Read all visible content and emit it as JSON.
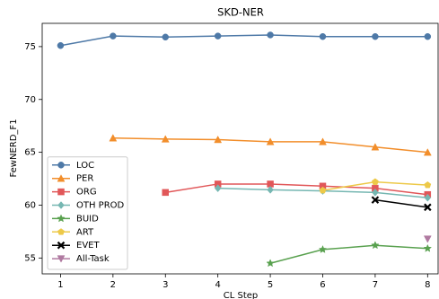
{
  "chart_data": {
    "type": "line",
    "title": "SKD-NER",
    "x_label": "CL Step",
    "y_label": "FewNERD_F1",
    "x": [
      1,
      2,
      3,
      4,
      5,
      6,
      7,
      8
    ],
    "xlim": [
      0.65,
      8.2
    ],
    "ylim": [
      53.5,
      77.2
    ],
    "xticks": [
      1,
      2,
      3,
      4,
      5,
      6,
      7,
      8
    ],
    "yticks": [
      55,
      60,
      65,
      70,
      75
    ],
    "grid": false,
    "legend": "lower left",
    "series": [
      {
        "name": "LOC",
        "color": "#4e79a7",
        "marker": "circle",
        "values": [
          75.1,
          76.0,
          75.9,
          76.0,
          76.1,
          75.95,
          75.95,
          75.95
        ]
      },
      {
        "name": "PER",
        "color": "#f28e2b",
        "marker": "triangle-up",
        "values": [
          null,
          66.35,
          66.25,
          66.2,
          66.0,
          66.0,
          65.5,
          65.0
        ]
      },
      {
        "name": "ORG",
        "color": "#e15759",
        "marker": "square",
        "values": [
          null,
          null,
          61.2,
          62.0,
          62.0,
          61.8,
          61.6,
          61.0
        ]
      },
      {
        "name": "OTH PROD",
        "color": "#76b7b2",
        "marker": "diamond",
        "values": [
          null,
          null,
          null,
          61.6,
          61.45,
          61.35,
          61.2,
          60.7
        ]
      },
      {
        "name": "BUID",
        "color": "#59a14f",
        "marker": "star",
        "values": [
          null,
          null,
          null,
          null,
          54.5,
          55.8,
          56.2,
          55.9
        ]
      },
      {
        "name": "ART",
        "color": "#edc948",
        "marker": "pentagon",
        "values": [
          null,
          null,
          null,
          null,
          null,
          61.4,
          62.2,
          61.9
        ]
      },
      {
        "name": "EVET",
        "color": "#000000",
        "marker": "x",
        "values": [
          null,
          null,
          null,
          null,
          null,
          null,
          60.5,
          59.8
        ]
      },
      {
        "name": "All-Task",
        "color": "#b07aa1",
        "marker": "triangle-down",
        "values": [
          null,
          null,
          null,
          null,
          null,
          null,
          null,
          56.8
        ]
      }
    ]
  }
}
